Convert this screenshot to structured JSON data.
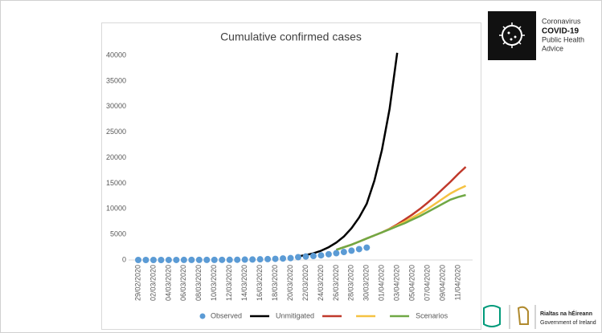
{
  "chart_data": {
    "type": "line",
    "title": "Cumulative confirmed cases",
    "categories": [
      "29/02/2020",
      null,
      "02/03/2020",
      null,
      "04/03/2020",
      null,
      "06/03/2020",
      null,
      "08/03/2020",
      null,
      "10/03/2020",
      null,
      "12/03/2020",
      null,
      "14/03/2020",
      null,
      "16/03/2020",
      null,
      "18/03/2020",
      null,
      "20/03/2020",
      null,
      "22/03/2020",
      null,
      "24/03/2020",
      null,
      "26/03/2020",
      null,
      "28/03/2020",
      null,
      "30/03/2020",
      null,
      "01/04/2020",
      null,
      "03/04/2020",
      null,
      "05/04/2020",
      null,
      "07/04/2020",
      null,
      "09/04/2020",
      null,
      "11/04/2020",
      null
    ],
    "series": [
      {
        "name": "Observed",
        "color": "#5b9bd5",
        "marker": true,
        "values": [
          1,
          1,
          1,
          2,
          6,
          6,
          13,
          18,
          19,
          21,
          21,
          24,
          34,
          43,
          70,
          90,
          129,
          169,
          223,
          292,
          366,
          557,
          683,
          785,
          906,
          1125,
          1329,
          1564,
          1819,
          2121,
          2415,
          null,
          null,
          null,
          null,
          null,
          null,
          null,
          null,
          null,
          null,
          null,
          null,
          null
        ]
      },
      {
        "name": "Unmitigated",
        "color": "#000000",
        "values": [
          null,
          null,
          null,
          null,
          null,
          null,
          null,
          null,
          null,
          null,
          null,
          null,
          null,
          null,
          null,
          null,
          null,
          null,
          null,
          null,
          null,
          700,
          950,
          1300,
          1800,
          2500,
          3400,
          4600,
          6200,
          8300,
          11000,
          15500,
          21500,
          29500,
          40500,
          null,
          null,
          null,
          null,
          null,
          null,
          null,
          null,
          null
        ]
      },
      {
        "color": "#c0392b",
        "values": [
          null,
          null,
          null,
          null,
          null,
          null,
          null,
          null,
          null,
          null,
          null,
          null,
          null,
          null,
          null,
          null,
          null,
          null,
          null,
          null,
          null,
          null,
          null,
          null,
          null,
          null,
          2000,
          2500,
          3000,
          3600,
          4200,
          4800,
          5400,
          6100,
          6950,
          7900,
          8900,
          10000,
          11200,
          12500,
          13900,
          15300,
          16800,
          18200
        ]
      },
      {
        "color": "#f5c242",
        "values": [
          null,
          null,
          null,
          null,
          null,
          null,
          null,
          null,
          null,
          null,
          null,
          null,
          null,
          null,
          null,
          null,
          null,
          null,
          null,
          null,
          null,
          null,
          null,
          null,
          null,
          null,
          2000,
          2500,
          3000,
          3600,
          4200,
          4800,
          5400,
          6050,
          6750,
          7500,
          8300,
          9100,
          10000,
          11000,
          12000,
          13000,
          13800,
          14500
        ]
      },
      {
        "name": "Scenarios",
        "color": "#70a845",
        "values": [
          null,
          null,
          null,
          null,
          null,
          null,
          null,
          null,
          null,
          null,
          null,
          null,
          null,
          null,
          null,
          null,
          null,
          null,
          null,
          null,
          null,
          null,
          null,
          null,
          null,
          null,
          2000,
          2500,
          3000,
          3600,
          4200,
          4800,
          5400,
          6000,
          6600,
          7200,
          7900,
          8600,
          9400,
          10200,
          11000,
          11800,
          12300,
          12700
        ]
      }
    ],
    "ylim": [
      0,
      40000
    ],
    "yticks": [
      0,
      5000,
      10000,
      15000,
      20000,
      25000,
      30000,
      35000,
      40000
    ],
    "grid": false,
    "legend": "bottom"
  },
  "header": {
    "logo_lines": [
      "Coronavirus",
      "COVID-19",
      "Public Health",
      "Advice"
    ]
  },
  "footer": {
    "government": [
      "Rialtas na hÉireann",
      "Government of Ireland"
    ]
  }
}
